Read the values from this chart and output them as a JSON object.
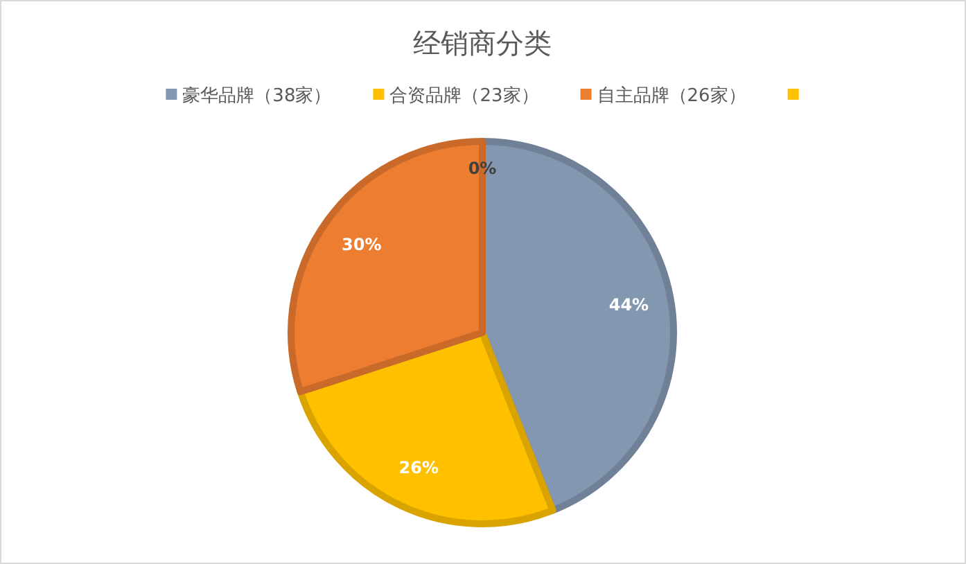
{
  "chart_data": {
    "type": "pie",
    "title": "经销商分类",
    "categories": [
      "豪华品牌（38家）",
      "合资品牌（23家）",
      "自主品牌（26家）",
      null
    ],
    "values": [
      44,
      26,
      30,
      0
    ],
    "colors": [
      "#8497b0",
      "#ffc000",
      "#ed7d31",
      "#ffc000"
    ],
    "value_labels": [
      "44%",
      "26%",
      "30%",
      "0%"
    ],
    "legend": "top"
  }
}
